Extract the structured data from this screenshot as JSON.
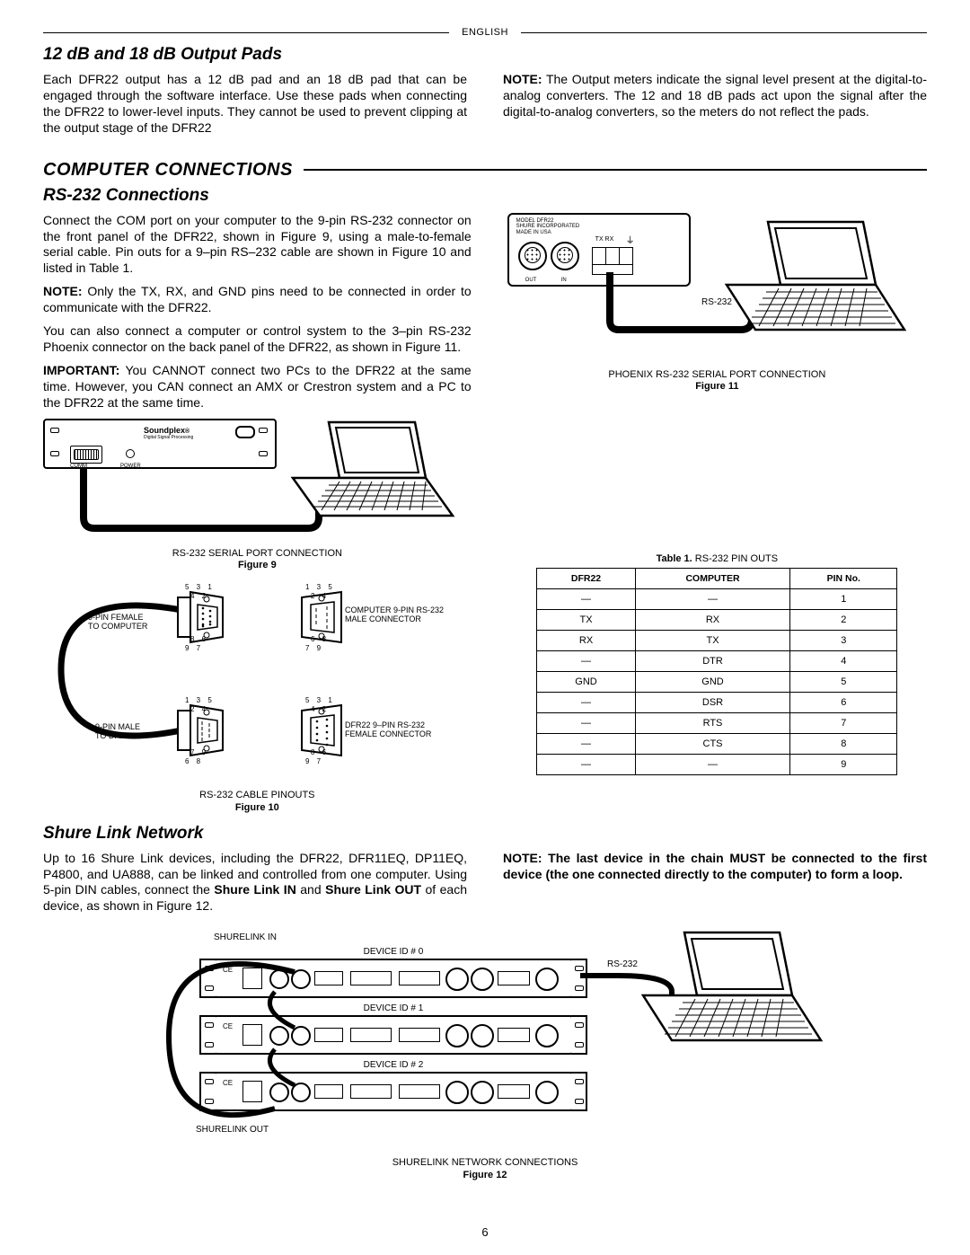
{
  "header_label": "ENGLISH",
  "page_number": "6",
  "pads": {
    "heading": "12 dB and 18 dB Output Pads",
    "para_left": "Each DFR22 output has a 12 dB pad and an 18 dB pad that can be engaged through the software interface. Use these pads when connecting the DFR22 to lower-level inputs. They cannot be used to prevent clipping at the output stage of the DFR22",
    "para_right_prefix": "NOTE:",
    "para_right": " The Output meters indicate the signal level present at the digital-to-analog converters. The 12 and 18  dB pads act upon the signal after the digital-to-analog converters, so the meters do not reflect the pads."
  },
  "computer_conn": {
    "section_title": "COMPUTER CONNECTIONS",
    "rs232_heading": "RS-232 Connections",
    "p1": "Connect the COM port on your computer to the 9-pin RS-232 connector on the front panel of the DFR22, shown in Figure 9, using a male-to-female serial cable. Pin outs for a 9–pin RS–232 cable are shown in Figure 10 and listed in Table 1.",
    "p2_prefix": "NOTE:",
    "p2": " Only the TX, RX, and GND pins need to be connected in order to communicate with the DFR22.",
    "p3": "You can also connect a computer or control system to the 3–pin RS-232 Phoenix connector on the back panel of the DFR22, as shown in Figure 11.",
    "p4_prefix": "IMPORTANT:",
    "p4": " You CANNOT connect two PCs to the DFR22 at the same time. However, you CAN connect an AMX or Crestron system and a PC to the DFR22 at the same time."
  },
  "fig9": {
    "soundplex": "Soundplex",
    "comm": "COMM",
    "power": "POWER",
    "caption_line1": "RS-232 SERIAL PORT CONNECTION",
    "caption_line2": "Figure 9"
  },
  "fig10": {
    "l1": "9-PIN FEMALE",
    "l2": "TO COMPUTER",
    "l3": "9-PIN MALE",
    "l4": "TO DFR22",
    "r1": "COMPUTER 9-PIN RS-232",
    "r2": "MALE CONNECTOR",
    "r3": "DFR22 9–PIN RS-232",
    "r4": "FEMALE CONNECTOR",
    "n531": "5  3  1",
    "n42": "4   2",
    "n135": "1  3  5",
    "n24": "2   4",
    "n68": "6   8",
    "n79": "7   9",
    "n86": "8   6",
    "n97": "9   7",
    "caption_line1": "RS-232 CABLE PINOUTS",
    "caption_line2": "Figure 10"
  },
  "fig11": {
    "model": "MODEL DFR22",
    "shure": "SHURE INCORPORATED",
    "made": "MADE IN USA",
    "txrx": "TX   RX",
    "out": "OUT",
    "in": "IN",
    "rs232": "RS-232",
    "caption_line1": "PHOENIX RS-232 SERIAL PORT CONNECTION",
    "caption_line2": "Figure 11"
  },
  "table1": {
    "title_bold": "Table 1.",
    "title_rest": " RS-232 PIN OUTS",
    "h1": "DFR22",
    "h2": "COMPUTER",
    "h3": "PIN No.",
    "rows": [
      [
        "—",
        "—",
        "1"
      ],
      [
        "TX",
        "RX",
        "2"
      ],
      [
        "RX",
        "TX",
        "3"
      ],
      [
        "—",
        "DTR",
        "4"
      ],
      [
        "GND",
        "GND",
        "5"
      ],
      [
        "—",
        "DSR",
        "6"
      ],
      [
        "—",
        "RTS",
        "7"
      ],
      [
        "—",
        "CTS",
        "8"
      ],
      [
        "—",
        "—",
        "9"
      ]
    ]
  },
  "shure_link": {
    "heading": "Shure Link Network",
    "p_left_1": "Up to 16 Shure Link devices, including the DFR22, DFR11EQ, DP11EQ, P4800, and UA888, can be linked and controlled from one computer. Using 5-pin DIN cables, connect the ",
    "p_left_b1": "Shure Link IN",
    "p_left_2": " and ",
    "p_left_b2": "Shure Link OUT",
    "p_left_3": " of each device, as shown in Figure 12.",
    "p_right": "NOTE: The last device in the chain MUST be connected to the first device (the one connected directly to the computer) to form a loop."
  },
  "fig12": {
    "shurelink_in": "SHURELINK IN",
    "shurelink_out": "SHURELINK OUT",
    "dev0": "DEVICE ID # 0",
    "dev1": "DEVICE ID # 1",
    "dev2": "DEVICE ID # 2",
    "rs232": "RS-232",
    "caption_line1": "SHURELINK NETWORK CONNECTIONS",
    "caption_line2": "Figure 12"
  }
}
